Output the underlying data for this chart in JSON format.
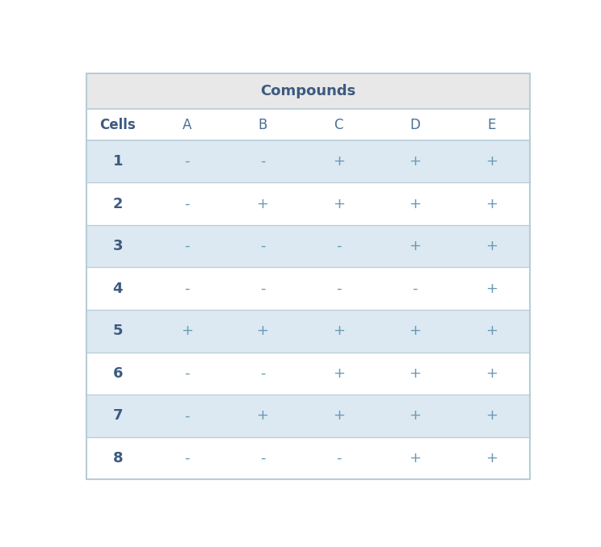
{
  "title": "Compounds",
  "col_headers": [
    "Cells",
    "A",
    "B",
    "C",
    "D",
    "E"
  ],
  "row_labels": [
    "1",
    "2",
    "3",
    "4",
    "5",
    "6",
    "7",
    "8"
  ],
  "table_data": [
    [
      "-",
      "-",
      "+",
      "+",
      "+"
    ],
    [
      "-",
      "+",
      "+",
      "+",
      "+"
    ],
    [
      "-",
      "-",
      "-",
      "+",
      "+"
    ],
    [
      "-",
      "-",
      "-",
      "-",
      "+"
    ],
    [
      "+",
      "+",
      "+",
      "+",
      "+"
    ],
    [
      "-",
      "-",
      "+",
      "+",
      "+"
    ],
    [
      "-",
      "+",
      "+",
      "+",
      "+"
    ],
    [
      "-",
      "-",
      "-",
      "+",
      "+"
    ]
  ],
  "title_bg": "#e8e8e8",
  "col_header_bg": "#ffffff",
  "row_odd_bg": "#dce9f2",
  "row_even_bg": "#ffffff",
  "title_color": "#3d5a80",
  "cells_label_color": "#3d5a80",
  "col_header_color": "#4a7096",
  "cell_text_color": "#6a9ab8",
  "row_label_color": "#3d5a80",
  "border_color": "#b8cdd8",
  "title_fontsize": 13,
  "header_fontsize": 12,
  "cell_fontsize": 13,
  "row_label_fontsize": 13,
  "fig_width": 7.44,
  "fig_height": 6.78,
  "dpi": 100
}
